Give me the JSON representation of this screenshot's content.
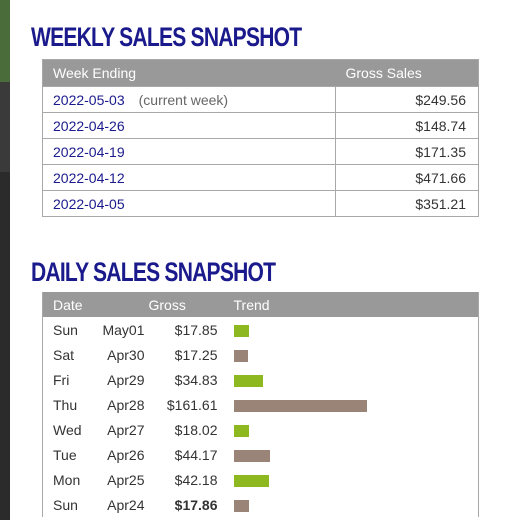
{
  "weekly": {
    "title": "WEEKLY SALES SNAPSHOT",
    "headers": {
      "week": "Week Ending",
      "gross": "Gross Sales"
    },
    "rows": [
      {
        "week": "2022-05-03",
        "note": "(current week)",
        "gross": "$249.56"
      },
      {
        "week": "2022-04-26",
        "note": "",
        "gross": "$148.74"
      },
      {
        "week": "2022-04-19",
        "note": "",
        "gross": "$171.35"
      },
      {
        "week": "2022-04-12",
        "note": "",
        "gross": "$471.66"
      },
      {
        "week": "2022-04-05",
        "note": "",
        "gross": "$351.21"
      }
    ]
  },
  "daily": {
    "title": "DAILY SALES SNAPSHOT",
    "headers": {
      "date": "Date",
      "gross": "Gross",
      "trend": "Trend"
    },
    "rows": [
      {
        "day": "Sun",
        "date": "May01",
        "gross": "$17.85",
        "value": 17.85,
        "color": "#8db81f"
      },
      {
        "day": "Sat",
        "date": "Apr30",
        "gross": "$17.25",
        "value": 17.25,
        "color": "#9a8478"
      },
      {
        "day": "Fri",
        "date": "Apr29",
        "gross": "$34.83",
        "value": 34.83,
        "color": "#8db81f"
      },
      {
        "day": "Thu",
        "date": "Apr28",
        "gross": "$161.61",
        "value": 161.61,
        "color": "#9a8478"
      },
      {
        "day": "Wed",
        "date": "Apr27",
        "gross": "$18.02",
        "value": 18.02,
        "color": "#8db81f"
      },
      {
        "day": "Tue",
        "date": "Apr26",
        "gross": "$44.17",
        "value": 44.17,
        "color": "#9a8478"
      },
      {
        "day": "Mon",
        "date": "Apr25",
        "gross": "$42.18",
        "value": 42.18,
        "color": "#8db81f"
      },
      {
        "day": "Sun",
        "date": "Apr24",
        "gross": "$17.86",
        "value": 17.86,
        "color": "#9a8478",
        "bold": true
      }
    ]
  },
  "colors": {
    "title": "#1a1a8c",
    "header_bg": "#999999",
    "bar_up": "#8db81f",
    "bar_down": "#9a8478"
  }
}
